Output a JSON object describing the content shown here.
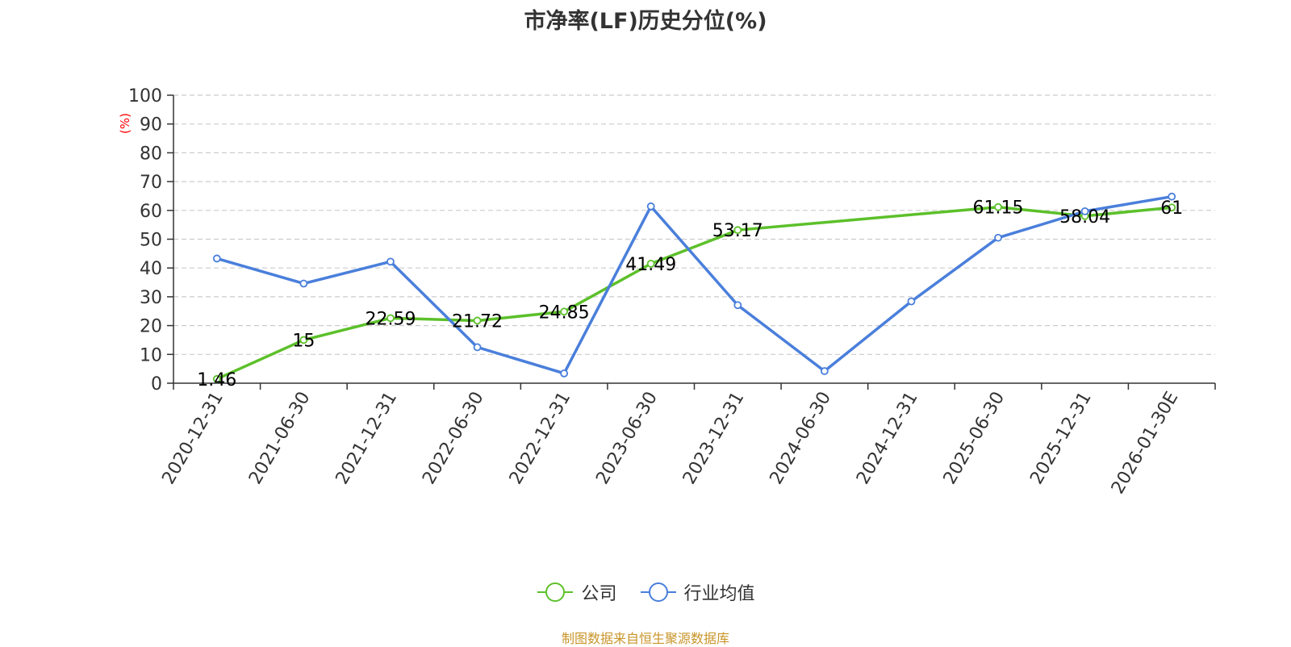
{
  "title": "市净率(LF)历史分位(%)",
  "source": "制图数据来自恒生聚源数据库",
  "colors": {
    "company": "#5cc02a",
    "industry": "#4a7fdb",
    "axis": "#333333",
    "grid": "#cccccc",
    "unit": "#ff0000",
    "source": "#c8952a",
    "title": "#333333"
  },
  "chart_data": {
    "type": "line",
    "title": "市净率(LF)历史分位(%)",
    "ylabel": "(%)",
    "ylim": [
      0,
      100
    ],
    "yticks": [
      0,
      10,
      20,
      30,
      40,
      50,
      60,
      70,
      80,
      90,
      100
    ],
    "grid": true,
    "legend_position": "bottom",
    "categories": [
      "2020-12-31",
      "2021-06-30",
      "2021-12-31",
      "2022-06-30",
      "2022-12-31",
      "2023-06-30",
      "2023-12-31",
      "2024-06-30",
      "2024-12-31",
      "2025-06-30",
      "2025-12-31",
      "2026-01-30E"
    ],
    "series": [
      {
        "name": "公司",
        "values": [
          1.46,
          15,
          22.59,
          21.72,
          24.85,
          41.49,
          53.17,
          null,
          null,
          61.15,
          58.04,
          61
        ],
        "labels": [
          "1.46",
          "15",
          "22.59",
          "21.72",
          "24.85",
          "41.49",
          "53.17",
          "",
          "",
          "61.15",
          "58.04",
          "61"
        ]
      },
      {
        "name": "行业均值",
        "values": [
          43.3,
          34.6,
          42.2,
          12.5,
          3.4,
          61.4,
          27.1,
          4.2,
          28.4,
          50.5,
          59.7,
          64.8
        ]
      }
    ]
  }
}
